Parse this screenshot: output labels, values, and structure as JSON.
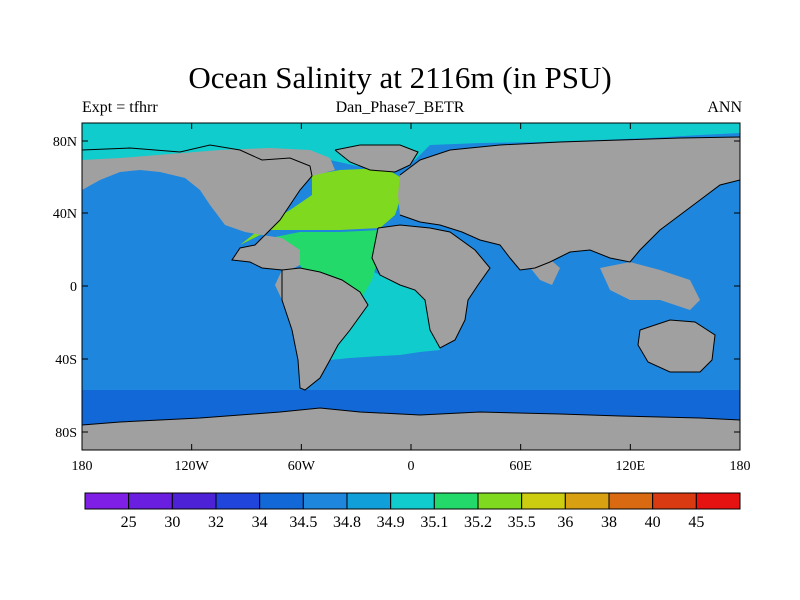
{
  "title": "Ocean Salinity at 2116m (in PSU)",
  "subtitle": "Dan_Phase7_BETR",
  "left_label": "Expt = tfhrr",
  "right_label": "ANN",
  "x_ticks": [
    "180",
    "120W",
    "60W",
    "0",
    "60E",
    "120E",
    "180"
  ],
  "y_ticks": [
    "80N",
    "40N",
    "0",
    "40S",
    "80S"
  ],
  "colorbar": {
    "colors": [
      "#7f1fe6",
      "#6a1fe0",
      "#4d22d6",
      "#1f45dc",
      "#1268d6",
      "#1e86dc",
      "#119fd9",
      "#11cccc",
      "#22d96a",
      "#7fd91f",
      "#cccc11",
      "#d9a011",
      "#d96a11",
      "#d93a11",
      "#e61111"
    ],
    "labels": [
      "25",
      "30",
      "32",
      "34",
      "34.5",
      "34.8",
      "34.9",
      "35.1",
      "35.2",
      "35.5",
      "36",
      "38",
      "40",
      "45"
    ]
  },
  "map": {
    "land_color": "#a0a0a0",
    "ocean_colors": {
      "pacific_indian": "#1e86dc",
      "southern": "#1268d6",
      "arctic": "#11cccc",
      "south_atlantic": "#11cccc",
      "north_atlantic": "#7fd91f",
      "tropical_atlantic": "#22d96a"
    }
  }
}
